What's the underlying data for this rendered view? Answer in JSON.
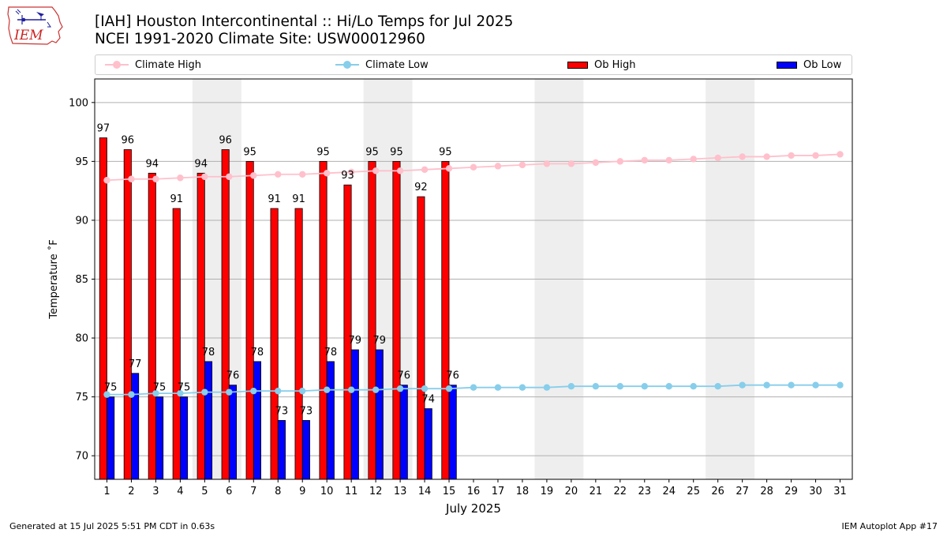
{
  "header": {
    "title_line1": "[IAH] Houston Intercontinental :: Hi/Lo Temps for Jul 2025",
    "title_line2": "NCEI 1991-2020 Climate Site: USW00012960"
  },
  "logo": {
    "text": "IEM",
    "icon": "iowa-state-map-logo"
  },
  "footer": {
    "left": "Generated at 15 Jul 2025 5:51 PM CDT in 0.63s",
    "right": "IEM Autoplot App #17"
  },
  "colors": {
    "ob_high": "#ff0000",
    "ob_low": "#0000ff",
    "climate_high": "#ffc0cb",
    "climate_low": "#87ceeb",
    "weekend_shade": "#eeeeee",
    "grid": "#b0b0b0"
  },
  "legend": {
    "placement": "top",
    "items": [
      {
        "label": "Climate High",
        "kind": "line",
        "color": "#ffc0cb"
      },
      {
        "label": "Climate Low",
        "kind": "line",
        "color": "#87ceeb"
      },
      {
        "label": "Ob High",
        "kind": "patch",
        "color": "#ff0000"
      },
      {
        "label": "Ob Low",
        "kind": "patch",
        "color": "#0000ff"
      }
    ]
  },
  "chart_data": {
    "type": "bar",
    "xlabel": "July 2025",
    "ylabel": "Temperature $^\\circ$F",
    "ylabel_display": "Temperature ˚F",
    "xlim": [
      0.5,
      31.5
    ],
    "ylim": [
      68,
      102
    ],
    "yticks": [
      70,
      75,
      80,
      85,
      90,
      95,
      100
    ],
    "grid": "horizontal",
    "days": [
      1,
      2,
      3,
      4,
      5,
      6,
      7,
      8,
      9,
      10,
      11,
      12,
      13,
      14,
      15,
      16,
      17,
      18,
      19,
      20,
      21,
      22,
      23,
      24,
      25,
      26,
      27,
      28,
      29,
      30,
      31
    ],
    "weekend_shading": [
      [
        5,
        6
      ],
      [
        12,
        13
      ],
      [
        19,
        20
      ],
      [
        26,
        27
      ]
    ],
    "series": [
      {
        "name": "Ob High",
        "kind": "bar",
        "x": [
          1,
          2,
          3,
          4,
          5,
          6,
          7,
          8,
          9,
          10,
          11,
          12,
          13,
          14,
          15
        ],
        "values": [
          97,
          96,
          94,
          91,
          94,
          96,
          95,
          91,
          91,
          95,
          93,
          95,
          95,
          92,
          95
        ],
        "labels": [
          "97",
          "96",
          "94",
          "91",
          "94",
          "96",
          "95",
          "91",
          "91",
          "95",
          "93",
          "95",
          "95",
          "92",
          "95"
        ]
      },
      {
        "name": "Ob Low",
        "kind": "bar",
        "x": [
          1,
          2,
          3,
          4,
          5,
          6,
          7,
          8,
          9,
          10,
          11,
          12,
          13,
          14,
          15
        ],
        "values": [
          75,
          77,
          75,
          75,
          78,
          76,
          78,
          73,
          73,
          78,
          79,
          79,
          76,
          74,
          76
        ],
        "labels": [
          "75",
          "77",
          "75",
          "75",
          "78",
          "76",
          "78",
          "73",
          "73",
          "78",
          "79",
          "79",
          "76",
          "74",
          "76"
        ]
      },
      {
        "name": "Climate High",
        "kind": "line",
        "x": [
          1,
          2,
          3,
          4,
          5,
          6,
          7,
          8,
          9,
          10,
          11,
          12,
          13,
          14,
          15,
          16,
          17,
          18,
          19,
          20,
          21,
          22,
          23,
          24,
          25,
          26,
          27,
          28,
          29,
          30,
          31
        ],
        "values": [
          93.4,
          93.5,
          93.5,
          93.6,
          93.7,
          93.7,
          93.8,
          93.9,
          93.9,
          94.0,
          94.1,
          94.2,
          94.2,
          94.3,
          94.4,
          94.5,
          94.6,
          94.7,
          94.8,
          94.8,
          94.9,
          95.0,
          95.1,
          95.1,
          95.2,
          95.3,
          95.4,
          95.4,
          95.5,
          95.5,
          95.6
        ]
      },
      {
        "name": "Climate Low",
        "kind": "line",
        "x": [
          1,
          2,
          3,
          4,
          5,
          6,
          7,
          8,
          9,
          10,
          11,
          12,
          13,
          14,
          15,
          16,
          17,
          18,
          19,
          20,
          21,
          22,
          23,
          24,
          25,
          26,
          27,
          28,
          29,
          30,
          31
        ],
        "values": [
          75.2,
          75.2,
          75.3,
          75.3,
          75.4,
          75.4,
          75.5,
          75.5,
          75.5,
          75.6,
          75.6,
          75.6,
          75.7,
          75.7,
          75.7,
          75.8,
          75.8,
          75.8,
          75.8,
          75.9,
          75.9,
          75.9,
          75.9,
          75.9,
          75.9,
          75.9,
          76.0,
          76.0,
          76.0,
          76.0,
          76.0
        ]
      }
    ]
  }
}
